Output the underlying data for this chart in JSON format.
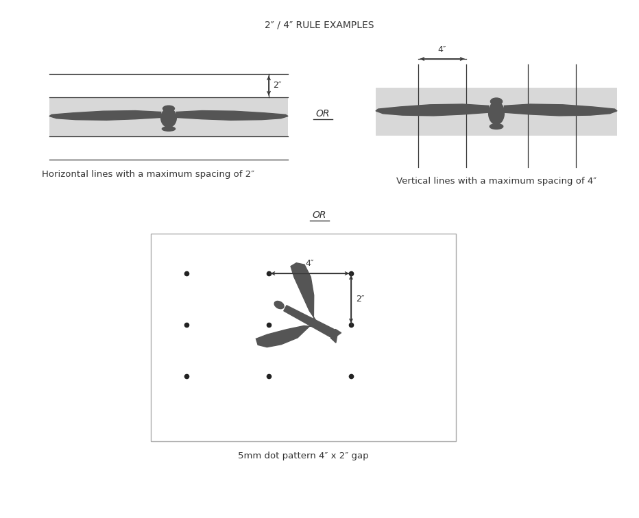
{
  "title": "2″ / 4″ RULE EXAMPLES",
  "title_fontsize": 10,
  "bg_color": "#ffffff",
  "bird_color": "#555555",
  "glass_color": "#d8d8d8",
  "line_color": "#333333",
  "label1": "Horizontal lines with a maximum spacing of 2″",
  "label2": "Vertical lines with a maximum spacing of 4″",
  "label3": "5mm dot pattern 4″ x 2″ gap",
  "or_label": "OR",
  "dim_2in": "2″",
  "dim_4in": "4″",
  "dim_4in_dot": "4″",
  "dim_2in_dot": "2″"
}
